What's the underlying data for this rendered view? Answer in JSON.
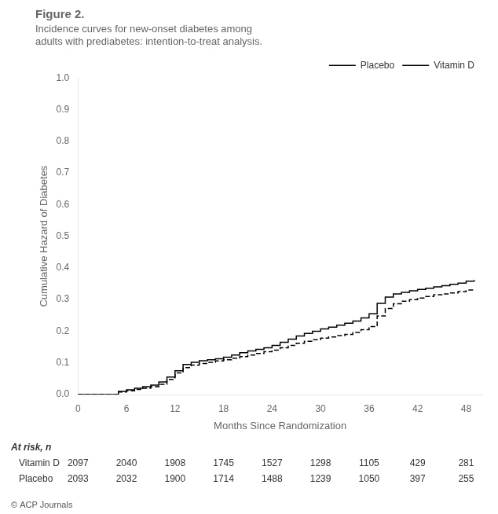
{
  "chart_data": {
    "type": "line",
    "title": "Figure 2.",
    "subtitle": [
      "Incidence curves for new-onset diabetes among",
      "adults with prediabetes: intention-to-treat analysis."
    ],
    "x_label": "Months Since Randomization",
    "y_label": "Cumulative Hazard of Diabetes",
    "xlim": [
      0,
      50
    ],
    "ylim": [
      0.0,
      1.0
    ],
    "xticks": [
      0,
      6,
      12,
      18,
      24,
      30,
      36,
      42,
      48
    ],
    "yticks": [
      {
        "value": 0,
        "label": "0.0"
      },
      0.1,
      0.2,
      0.3,
      0.4,
      0.5,
      0.6,
      0.7,
      0.8,
      0.9,
      {
        "value": 1,
        "label": "1.0"
      }
    ],
    "grid": false,
    "legend": "upper right",
    "series": [
      {
        "name": "Placebo",
        "color": "#000000",
        "line_style": "solid",
        "x": [
          0,
          4,
          5,
          6,
          7,
          8,
          9,
          10,
          11,
          12,
          13,
          14,
          15,
          16,
          17,
          18,
          19,
          20,
          21,
          22,
          23,
          24,
          25,
          26,
          27,
          28,
          29,
          30,
          31,
          32,
          33,
          34,
          35,
          36,
          37,
          38,
          39,
          40,
          41,
          42,
          43,
          44,
          45,
          46,
          47,
          48,
          49
        ],
        "values": [
          0.0,
          0.0,
          0.01,
          0.015,
          0.02,
          0.025,
          0.03,
          0.04,
          0.055,
          0.075,
          0.095,
          0.102,
          0.107,
          0.11,
          0.113,
          0.118,
          0.125,
          0.132,
          0.138,
          0.143,
          0.148,
          0.155,
          0.165,
          0.175,
          0.185,
          0.193,
          0.2,
          0.207,
          0.213,
          0.219,
          0.225,
          0.232,
          0.242,
          0.255,
          0.288,
          0.308,
          0.318,
          0.323,
          0.328,
          0.332,
          0.336,
          0.34,
          0.344,
          0.348,
          0.352,
          0.358,
          0.362
        ]
      },
      {
        "name": "Vitamin D",
        "color": "#000000",
        "line_style": "dashed",
        "x": [
          0,
          4,
          5,
          6,
          7,
          8,
          9,
          10,
          11,
          12,
          13,
          14,
          15,
          16,
          17,
          18,
          19,
          20,
          21,
          22,
          23,
          24,
          25,
          26,
          27,
          28,
          29,
          30,
          31,
          32,
          33,
          34,
          35,
          36,
          37,
          38,
          39,
          40,
          41,
          42,
          43,
          44,
          45,
          46,
          47,
          48,
          49
        ],
        "values": [
          0.0,
          0.0,
          0.008,
          0.012,
          0.016,
          0.02,
          0.025,
          0.032,
          0.048,
          0.068,
          0.085,
          0.093,
          0.098,
          0.102,
          0.106,
          0.11,
          0.115,
          0.12,
          0.125,
          0.13,
          0.135,
          0.14,
          0.148,
          0.155,
          0.162,
          0.168,
          0.173,
          0.178,
          0.182,
          0.186,
          0.19,
          0.196,
          0.205,
          0.215,
          0.248,
          0.272,
          0.287,
          0.295,
          0.3,
          0.305,
          0.31,
          0.315,
          0.318,
          0.321,
          0.325,
          0.33,
          0.333
        ]
      }
    ],
    "table": {
      "title": "At risk, n",
      "x": [
        0,
        6,
        12,
        18,
        24,
        30,
        36,
        42,
        48
      ],
      "rows": [
        {
          "name": "Vitamin D",
          "values": [
            2097,
            2040,
            1908,
            1745,
            1527,
            1298,
            1105,
            429,
            281
          ]
        },
        {
          "name": "Placebo",
          "values": [
            2093,
            2032,
            1900,
            1714,
            1488,
            1239,
            1050,
            397,
            255
          ]
        }
      ]
    },
    "annotations": [
      "© ACP Journals"
    ]
  }
}
